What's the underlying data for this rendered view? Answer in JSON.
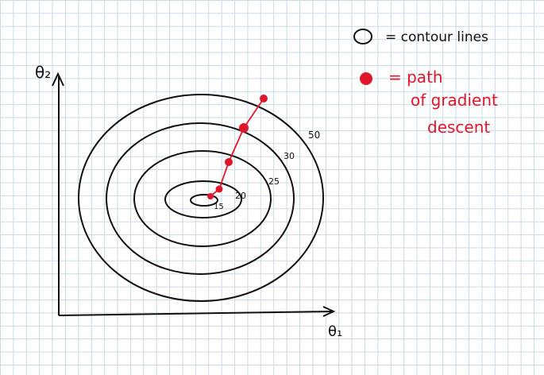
{
  "axes": {
    "y_label": "θ₂",
    "x_label": "θ₁"
  },
  "contours": [
    {
      "label": "50"
    },
    {
      "label": "30"
    },
    {
      "label": "25"
    },
    {
      "label": "20"
    },
    {
      "label": "15"
    }
  ],
  "legend": {
    "contour_text": "= contour lines",
    "path_text_lines": [
      "= path",
      "of gradient",
      "descent"
    ]
  },
  "colors": {
    "ink": "#111111",
    "path": "#e0162b",
    "grid": "#c9dbe8"
  }
}
